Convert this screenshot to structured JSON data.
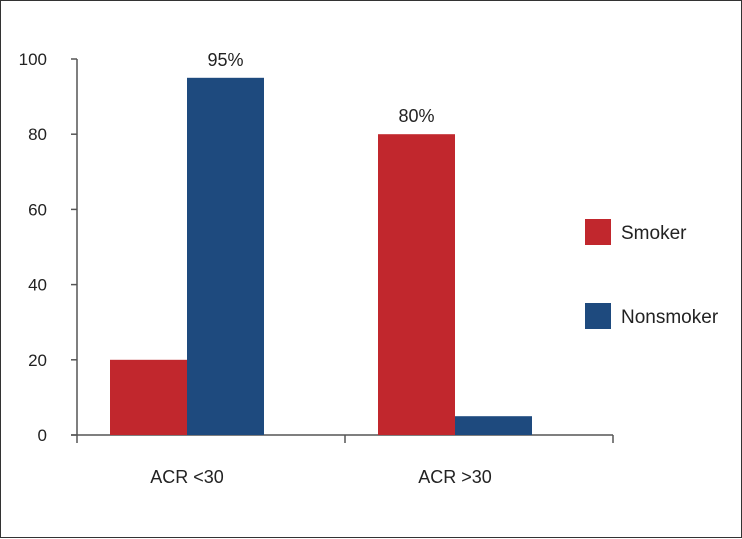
{
  "chart_data": {
    "type": "bar",
    "categories": [
      "ACR <30",
      "ACR >30"
    ],
    "series": [
      {
        "name": "Smoker",
        "values": [
          20,
          80
        ],
        "color": "#c1272d"
      },
      {
        "name": "Nonsmoker",
        "values": [
          95,
          5
        ],
        "color": "#1e4a7e"
      }
    ],
    "ylim": [
      0,
      100
    ],
    "yticks": [
      "0",
      "20",
      "40",
      "60",
      "80",
      "100"
    ],
    "data_labels": [
      {
        "series": 1,
        "category": 0,
        "text": "95%"
      },
      {
        "series": 0,
        "category": 1,
        "text": "80%"
      }
    ],
    "title": "",
    "xlabel": "",
    "ylabel": "",
    "legend_position": "right",
    "grid": false
  }
}
